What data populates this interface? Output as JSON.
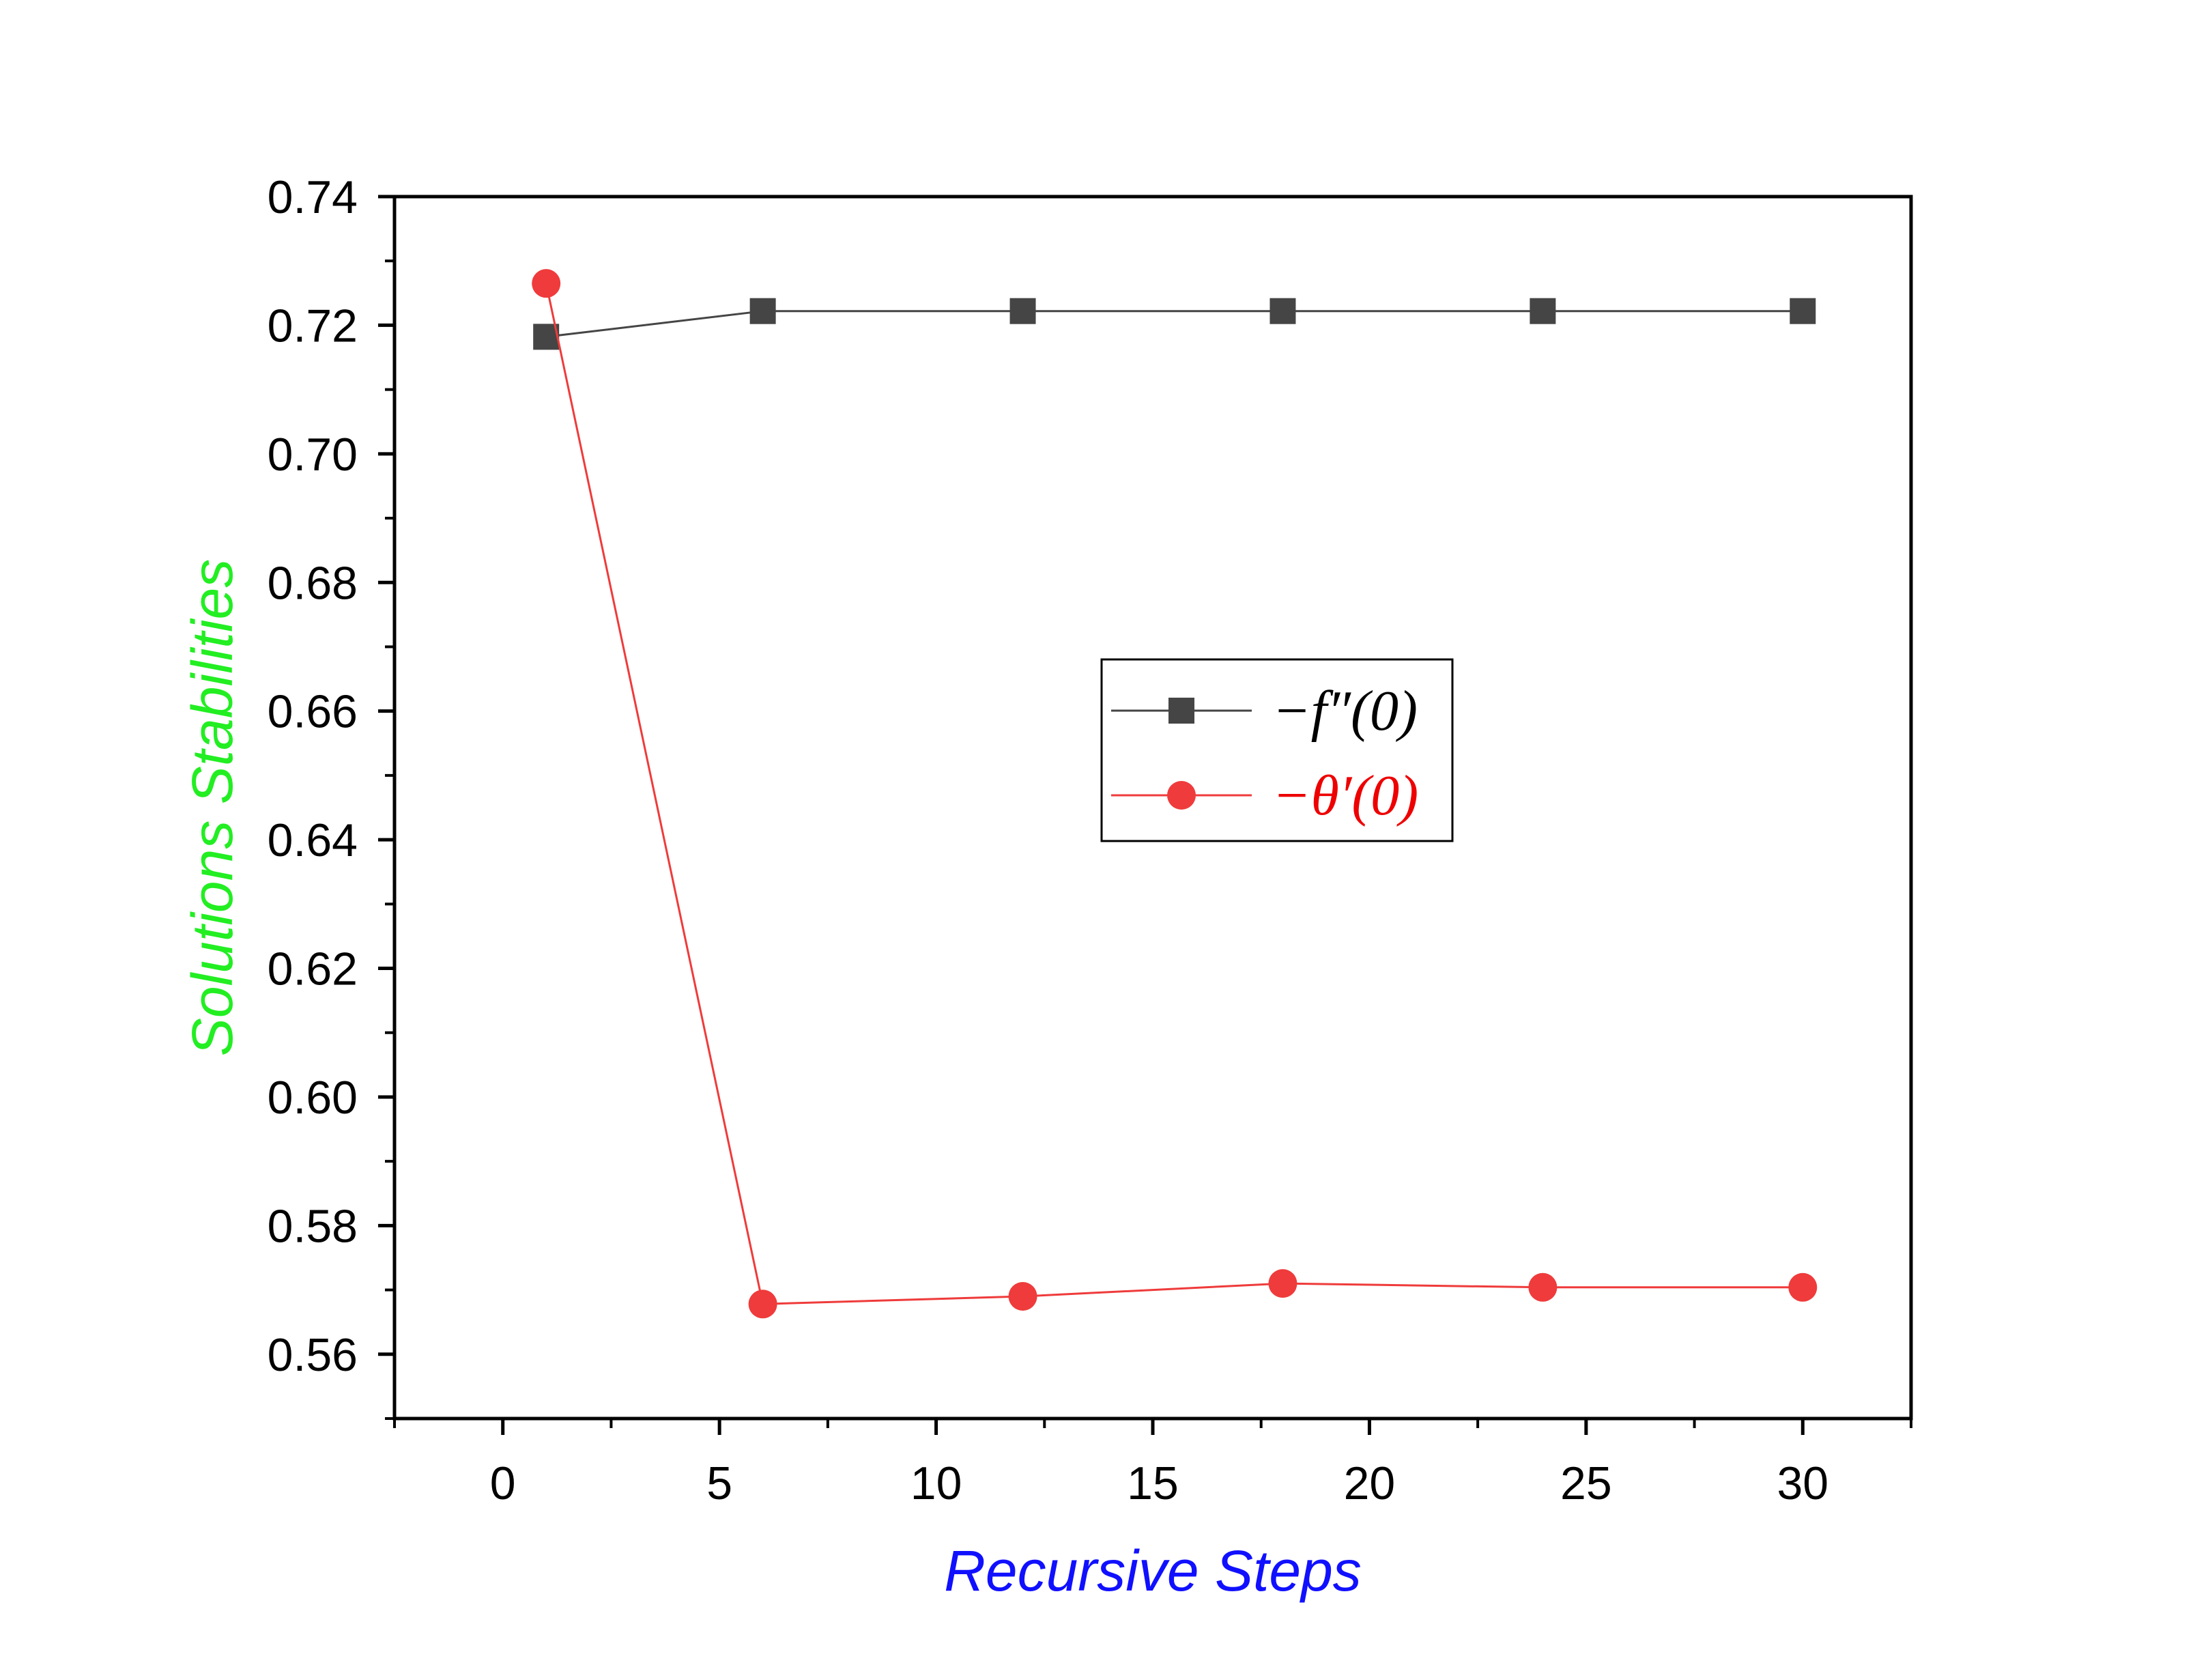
{
  "chart_data": {
    "type": "line",
    "title": "",
    "xlabel": "Recursive Steps",
    "ylabel": "Solutions Stabilities",
    "xlabel_color": "#1010ff",
    "ylabel_color": "#22ee22",
    "xlim": [
      -2.5,
      32.5
    ],
    "ylim": [
      0.55,
      0.74
    ],
    "x_ticks": [
      0,
      5,
      10,
      15,
      20,
      25,
      30
    ],
    "x_tick_labels": [
      "0",
      "5",
      "10",
      "15",
      "20",
      "25",
      "30"
    ],
    "y_ticks": [
      0.56,
      0.58,
      0.6,
      0.62,
      0.64,
      0.66,
      0.68,
      0.7,
      0.72,
      0.74
    ],
    "y_tick_labels": [
      "0.56",
      "0.58",
      "0.60",
      "0.62",
      "0.64",
      "0.66",
      "0.68",
      "0.70",
      "0.72",
      "0.74"
    ],
    "grid": false,
    "legend_position": "center-right",
    "x": [
      1,
      6,
      12,
      18,
      24,
      30
    ],
    "series": [
      {
        "name": "−f″(0)",
        "marker": "square",
        "color": "#454545",
        "text_color": "#000000",
        "values": [
          0.7182,
          0.7222,
          0.7222,
          0.7222,
          0.7222,
          0.7222
        ]
      },
      {
        "name": "−θ′(0)",
        "marker": "circle",
        "color": "#ef3b3b",
        "text_color": "#ee0000",
        "values": [
          0.7265,
          0.5678,
          0.569,
          0.571,
          0.5704,
          0.5704
        ]
      }
    ]
  }
}
